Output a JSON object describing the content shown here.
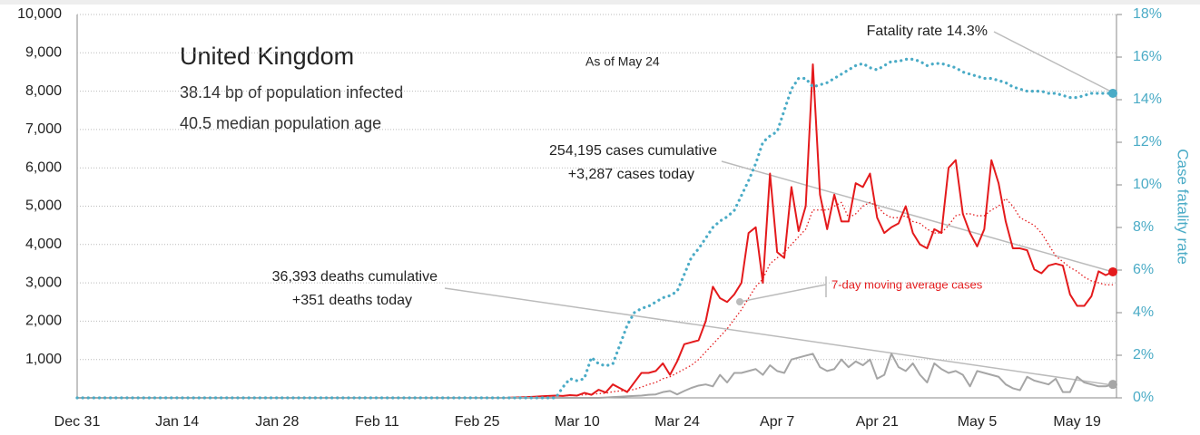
{
  "chart_data": {
    "type": "line",
    "title": "United Kingdom",
    "subtitle": [
      "38.14 bp of population infected",
      "40.5 median population age"
    ],
    "annotations": {
      "as_of": "As of May 24",
      "fatality": "Fatality rate 14.3%",
      "cases": [
        "254,195 cases cumulative",
        "+3,287 cases today"
      ],
      "deaths": [
        "36,393 deaths cumulative",
        "+351 deaths today"
      ],
      "moving_average": "7-day moving average cases"
    },
    "y2label": "Case fatality rate",
    "categories": [
      "Dec 31",
      null,
      null,
      null,
      null,
      null,
      null,
      null,
      null,
      null,
      null,
      null,
      null,
      null,
      "Jan 14",
      null,
      null,
      null,
      null,
      null,
      null,
      null,
      null,
      null,
      null,
      null,
      null,
      null,
      "Jan 28",
      null,
      null,
      null,
      null,
      null,
      null,
      null,
      null,
      null,
      null,
      null,
      null,
      null,
      "Feb 11",
      null,
      null,
      null,
      null,
      null,
      null,
      null,
      null,
      null,
      null,
      null,
      null,
      null,
      "Feb 25",
      null,
      null,
      null,
      null,
      null,
      null,
      null,
      null,
      null,
      null,
      null,
      null,
      null,
      "Mar 10",
      null,
      null,
      null,
      null,
      null,
      null,
      null,
      null,
      null,
      null,
      null,
      null,
      null,
      "Mar 24",
      null,
      null,
      null,
      null,
      null,
      null,
      null,
      null,
      null,
      null,
      null,
      null,
      null,
      "Apr 7",
      null,
      null,
      null,
      null,
      null,
      null,
      null,
      null,
      null,
      null,
      null,
      null,
      null,
      "Apr 21",
      null,
      null,
      null,
      null,
      null,
      null,
      null,
      null,
      null,
      null,
      null,
      null,
      null,
      "May 5",
      null,
      null,
      null,
      null,
      null,
      null,
      null,
      null,
      null,
      null,
      null,
      null,
      null,
      "May 19",
      null,
      null,
      null,
      null,
      null
    ],
    "ylim": [
      0,
      10000
    ],
    "yticks": [
      {
        "value": 1000,
        "label": "1,000"
      },
      {
        "value": 2000,
        "label": "2,000"
      },
      {
        "value": 3000,
        "label": "3,000"
      },
      {
        "value": 4000,
        "label": "4,000"
      },
      {
        "value": 5000,
        "label": "5,000"
      },
      {
        "value": 6000,
        "label": "6,000"
      },
      {
        "value": 7000,
        "label": "7,000"
      },
      {
        "value": 8000,
        "label": "8,000"
      },
      {
        "value": 9000,
        "label": "9,000"
      },
      {
        "value": 10000,
        "label": "10,000"
      }
    ],
    "y2lim": [
      0,
      18
    ],
    "y2ticks": [
      {
        "value": 0,
        "label": "0%"
      },
      {
        "value": 2,
        "label": "2%"
      },
      {
        "value": 4,
        "label": "4%"
      },
      {
        "value": 6,
        "label": "6%"
      },
      {
        "value": 8,
        "label": "8%"
      },
      {
        "value": 10,
        "label": "10%"
      },
      {
        "value": 12,
        "label": "12%"
      },
      {
        "value": 14,
        "label": "14%"
      },
      {
        "value": 16,
        "label": "16%"
      },
      {
        "value": 18,
        "label": "18%"
      }
    ],
    "grid": true,
    "series": [
      {
        "color": "#e41a1c",
        "style": "solid",
        "values": [
          0,
          0,
          0,
          0,
          0,
          0,
          0,
          0,
          0,
          0,
          0,
          0,
          0,
          0,
          0,
          0,
          0,
          0,
          0,
          0,
          0,
          0,
          0,
          0,
          0,
          0,
          0,
          0,
          0,
          0,
          0,
          0,
          0,
          0,
          0,
          0,
          0,
          0,
          0,
          0,
          0,
          0,
          0,
          0,
          0,
          0,
          0,
          0,
          0,
          0,
          0,
          0,
          0,
          0,
          0,
          0,
          0,
          0,
          0,
          0,
          0,
          10,
          15,
          20,
          30,
          40,
          50,
          60,
          50,
          70,
          60,
          130,
          80,
          210,
          140,
          350,
          250,
          150,
          400,
          650,
          650,
          700,
          900,
          600,
          950,
          1400,
          1450,
          1500,
          2000,
          2900,
          2600,
          2500,
          2700,
          3000,
          4300,
          4450,
          3000,
          5850,
          3800,
          3650,
          5500,
          4350,
          5000,
          8700,
          5300,
          4400,
          5300,
          4600,
          4600,
          5600,
          5500,
          5850,
          4700,
          4300,
          4450,
          4550,
          5000,
          4300,
          4000,
          3900,
          4400,
          4300,
          6000,
          6200,
          4800,
          4300,
          3950,
          4400,
          6200,
          5600,
          4600,
          3900,
          3900,
          3850,
          3350,
          3250,
          3450,
          3500,
          3450,
          2700,
          2400,
          2400,
          2650,
          3300,
          3200,
          3287
        ],
        "end_dot": true
      },
      {
        "color": "#e41a1c",
        "style": "dotted-thin",
        "values": [
          0,
          0,
          0,
          0,
          0,
          0,
          0,
          0,
          0,
          0,
          0,
          0,
          0,
          0,
          0,
          0,
          0,
          0,
          0,
          0,
          0,
          0,
          0,
          0,
          0,
          0,
          0,
          0,
          0,
          0,
          0,
          0,
          0,
          0,
          0,
          0,
          0,
          0,
          0,
          0,
          0,
          0,
          0,
          0,
          0,
          0,
          0,
          0,
          0,
          0,
          0,
          0,
          0,
          0,
          0,
          0,
          0,
          0,
          0,
          0,
          0,
          0,
          0,
          0,
          0,
          0,
          0,
          50,
          55,
          60,
          65,
          80,
          90,
          110,
          120,
          160,
          180,
          190,
          220,
          280,
          350,
          400,
          500,
          550,
          650,
          750,
          850,
          1000,
          1200,
          1400,
          1600,
          1800,
          2050,
          2300,
          2600,
          2900,
          3100,
          3500,
          3650,
          3800,
          4000,
          4200,
          4400,
          4900,
          4900,
          4900,
          5000,
          5100,
          4700,
          4800,
          5000,
          5100,
          5000,
          4800,
          4700,
          4700,
          4750,
          4600,
          4550,
          4400,
          4300,
          4300,
          4500,
          4750,
          4800,
          4800,
          4750,
          4750,
          4900,
          5000,
          5200,
          5000,
          4700,
          4600,
          4500,
          4300,
          4000,
          3700,
          3550,
          3400,
          3300,
          3150,
          3050,
          3000,
          2950,
          2950
        ]
      },
      {
        "color": "#a6a6a6",
        "style": "solid",
        "values": [
          0,
          0,
          0,
          0,
          0,
          0,
          0,
          0,
          0,
          0,
          0,
          0,
          0,
          0,
          0,
          0,
          0,
          0,
          0,
          0,
          0,
          0,
          0,
          0,
          0,
          0,
          0,
          0,
          0,
          0,
          0,
          0,
          0,
          0,
          0,
          0,
          0,
          0,
          0,
          0,
          0,
          0,
          0,
          0,
          0,
          0,
          0,
          0,
          0,
          0,
          0,
          0,
          0,
          0,
          0,
          0,
          0,
          0,
          0,
          0,
          0,
          0,
          0,
          0,
          0,
          0,
          0,
          0,
          0,
          0,
          0,
          0,
          0,
          0,
          10,
          20,
          30,
          40,
          50,
          60,
          80,
          90,
          150,
          180,
          90,
          180,
          260,
          320,
          350,
          300,
          600,
          400,
          650,
          650,
          700,
          750,
          600,
          850,
          700,
          650,
          1000,
          1050,
          1100,
          1150,
          800,
          700,
          750,
          1000,
          800,
          950,
          850,
          1000,
          500,
          600,
          1150,
          800,
          700,
          900,
          600,
          400,
          900,
          750,
          650,
          700,
          600,
          300,
          700,
          650,
          600,
          550,
          350,
          250,
          200,
          550,
          450,
          400,
          350,
          500,
          150,
          150,
          550,
          400,
          350,
          300,
          300,
          351
        ],
        "end_dot": true
      },
      {
        "color": "#4aabc6",
        "style": "dotted",
        "axis": "y2",
        "values": [
          0,
          0,
          0,
          0,
          0,
          0,
          0,
          0,
          0,
          0,
          0,
          0,
          0,
          0,
          0,
          0,
          0,
          0,
          0,
          0,
          0,
          0,
          0,
          0,
          0,
          0,
          0,
          0,
          0,
          0,
          0,
          0,
          0,
          0,
          0,
          0,
          0,
          0,
          0,
          0,
          0,
          0,
          0,
          0,
          0,
          0,
          0,
          0,
          0,
          0,
          0,
          0,
          0,
          0,
          0,
          0,
          0,
          0,
          0,
          0,
          0,
          0,
          0,
          0,
          0,
          0,
          0,
          0,
          0.5,
          0.9,
          0.8,
          0.9,
          1.9,
          1.6,
          1.5,
          1.6,
          2.5,
          3.4,
          4.0,
          4.2,
          4.3,
          4.5,
          4.7,
          4.8,
          5.0,
          5.8,
          6.6,
          7.0,
          7.5,
          8.0,
          8.3,
          8.5,
          8.8,
          9.5,
          10.2,
          11.0,
          12.0,
          12.3,
          12.5,
          13.5,
          14.5,
          15.0,
          15.0,
          14.6,
          14.7,
          14.8,
          15.0,
          15.2,
          15.4,
          15.6,
          15.7,
          15.5,
          15.4,
          15.6,
          15.8,
          15.8,
          15.9,
          15.9,
          15.8,
          15.6,
          15.7,
          15.7,
          15.6,
          15.5,
          15.3,
          15.2,
          15.1,
          15.0,
          15.0,
          14.9,
          14.8,
          14.6,
          14.5,
          14.4,
          14.4,
          14.4,
          14.3,
          14.3,
          14.2,
          14.1,
          14.1,
          14.2,
          14.3,
          14.3,
          14.3,
          14.3
        ],
        "end_dot": true
      }
    ]
  }
}
